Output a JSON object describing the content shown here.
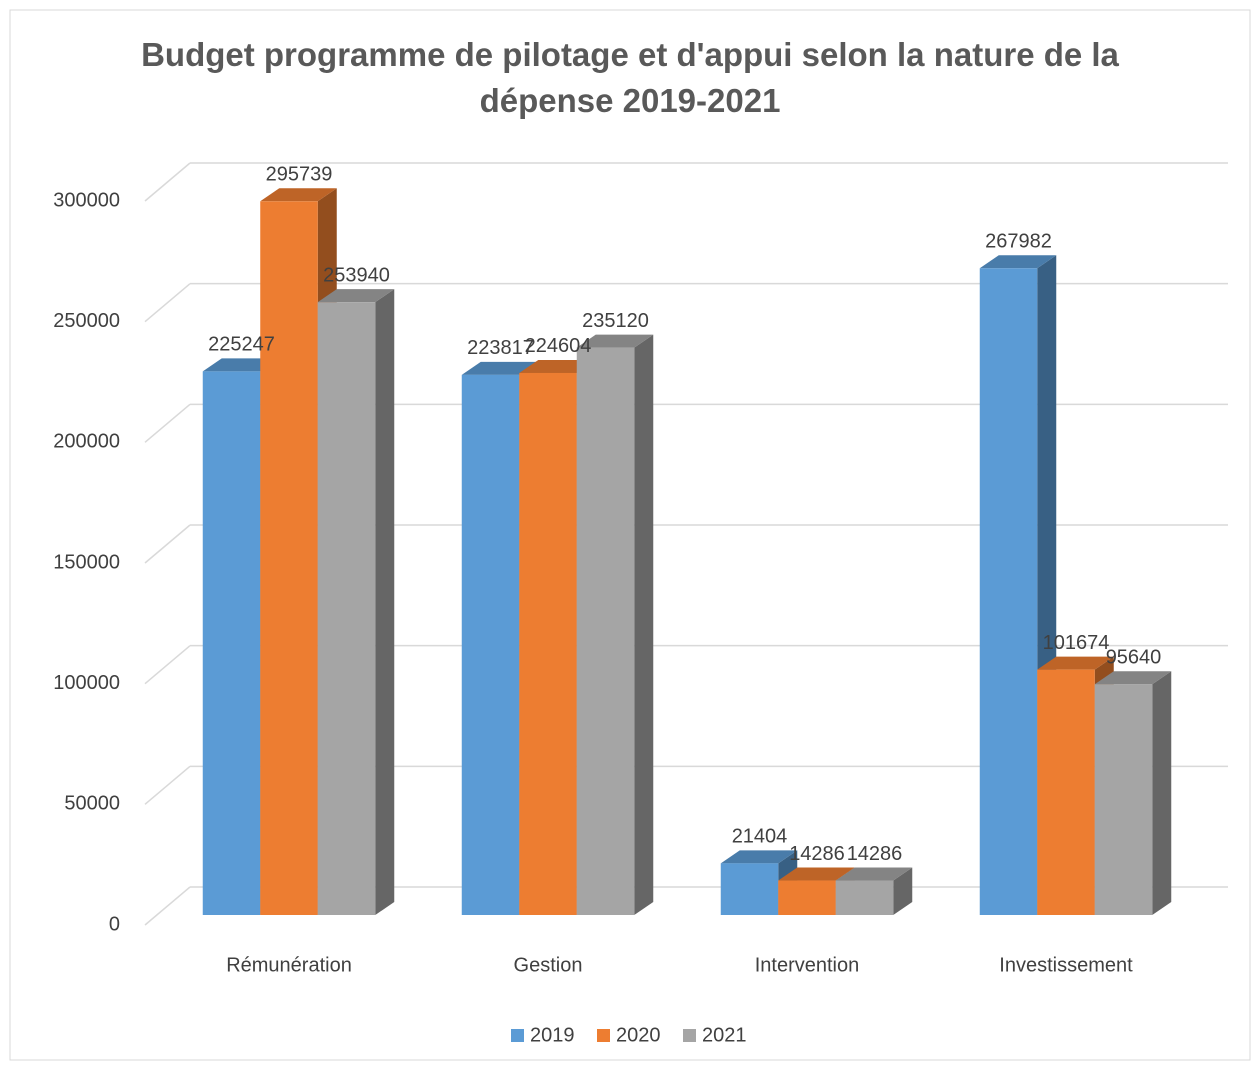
{
  "chart_data": {
    "type": "bar3d",
    "title": "Budget programme de pilotage et d'appui selon la nature de la dépense  2019-2021",
    "categories": [
      "Rémunération",
      "Gestion",
      "Intervention",
      "Investissement"
    ],
    "series": [
      {
        "name": "2019",
        "color": "#5b9bd5",
        "values": [
          225247,
          223817,
          21404,
          267982
        ]
      },
      {
        "name": "2020",
        "color": "#ed7d31",
        "values": [
          295739,
          224604,
          14286,
          101674
        ]
      },
      {
        "name": "2021",
        "color": "#a5a5a5",
        "values": [
          253940,
          235120,
          14286,
          95640
        ]
      }
    ],
    "ylim": [
      0,
      300000
    ],
    "yticks": [
      0,
      50000,
      100000,
      150000,
      200000,
      250000,
      300000
    ],
    "grid": true,
    "legend": "bottom"
  }
}
